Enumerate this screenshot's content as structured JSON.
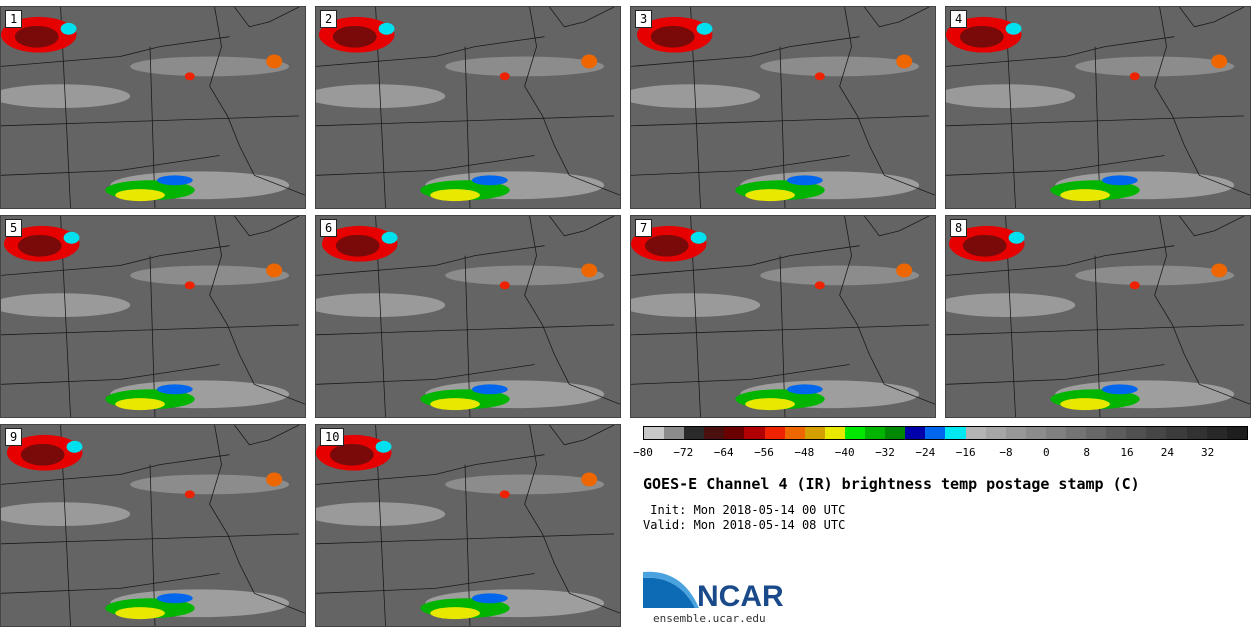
{
  "panels": [
    {
      "label": "1"
    },
    {
      "label": "2"
    },
    {
      "label": "3"
    },
    {
      "label": "4"
    },
    {
      "label": "5"
    },
    {
      "label": "6"
    },
    {
      "label": "7"
    },
    {
      "label": "8"
    },
    {
      "label": "9"
    },
    {
      "label": "10"
    }
  ],
  "colorbar": {
    "colors": [
      "#c8c8c8",
      "#8c8c8c",
      "#2a2a2a",
      "#4a1010",
      "#6a0000",
      "#b00000",
      "#ee2200",
      "#ee6600",
      "#d4a000",
      "#e8e800",
      "#00e800",
      "#00b400",
      "#008800",
      "#0000aa",
      "#0066ee",
      "#00e8f0",
      "#b4b4b4",
      "#a6a6a6",
      "#989898",
      "#8c8c8c",
      "#808080",
      "#747474",
      "#686868",
      "#5c5c5c",
      "#505050",
      "#464646",
      "#3c3c3c",
      "#323232",
      "#282828",
      "#1e1e1e"
    ],
    "tick_labels": [
      "−80",
      "−72",
      "−64",
      "−56",
      "−48",
      "−40",
      "−32",
      "−24",
      "−16",
      "−8",
      "0",
      "8",
      "16",
      "24",
      "32"
    ]
  },
  "title": "GOES-E Channel 4 (IR) brightness temp postage stamp (C)",
  "init": " Init: Mon 2018-05-14 00 UTC",
  "valid": "Valid: Mon 2018-05-14 08 UTC",
  "logo": {
    "text": "NCAR",
    "url": "ensemble.ucar.edu"
  }
}
